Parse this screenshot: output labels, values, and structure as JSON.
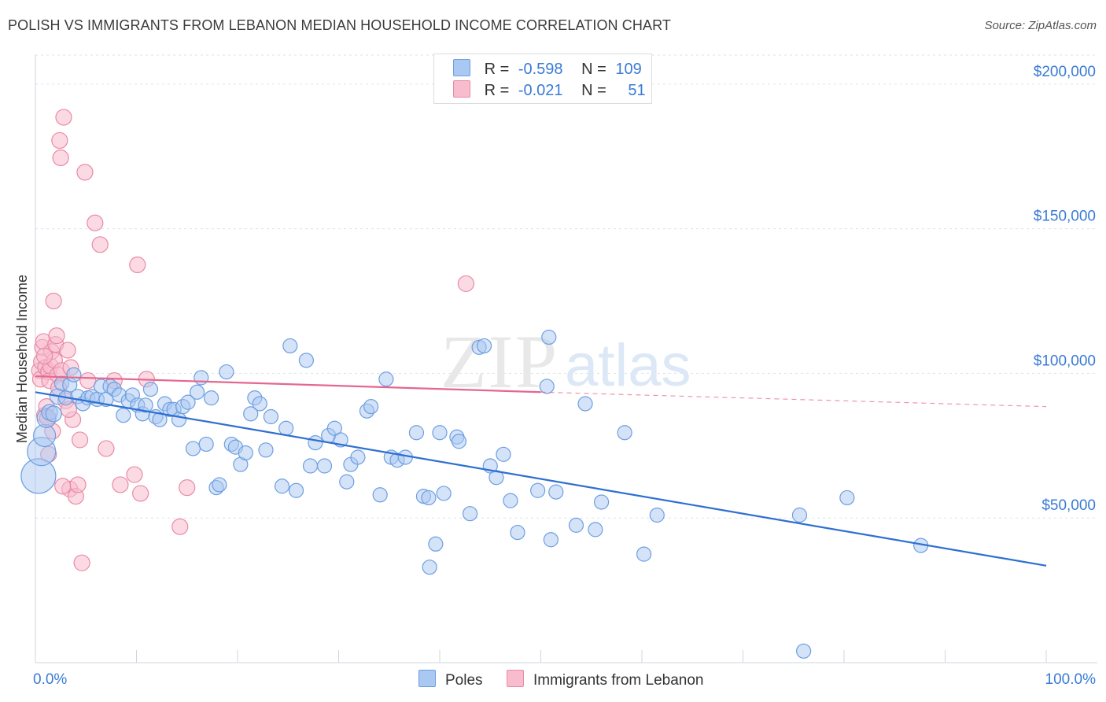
{
  "header": {
    "title": "POLISH VS IMMIGRANTS FROM LEBANON MEDIAN HOUSEHOLD INCOME CORRELATION CHART",
    "source": "Source: ZipAtlas.com"
  },
  "watermark": {
    "zip": "ZIP",
    "atlas": "atlas"
  },
  "legend": {
    "rows": [
      {
        "r_label": "R =",
        "r_value": "-0.598",
        "n_label": "N =",
        "n_value": "109",
        "color": "#a9c8f2"
      },
      {
        "r_label": "R =",
        "r_value": "-0.021",
        "n_label": "N =",
        "n_value": "51",
        "color": "#f7bccd"
      }
    ]
  },
  "bottom_legend": {
    "series1": "Poles",
    "series2": "Immigrants from Lebanon"
  },
  "colors": {
    "blue_fill": "#a9c8f2",
    "blue_stroke": "#6d9fe0",
    "blue_line": "#2e6fd1",
    "pink_fill": "#f7bccd",
    "pink_stroke": "#e98aa7",
    "pink_line": "#e5678f",
    "grid": "#dde3ea",
    "axis_text": "#3a7bd5"
  },
  "chart_data": {
    "type": "scatter",
    "title": "POLISH VS IMMIGRANTS FROM LEBANON MEDIAN HOUSEHOLD INCOME CORRELATION CHART",
    "xlabel": "",
    "ylabel": "Median Household Income",
    "xlim": [
      0,
      100
    ],
    "ylim": [
      0,
      210000
    ],
    "x_tick_labels": [
      "0.0%",
      "100.0%"
    ],
    "y_ticks": [
      50000,
      100000,
      150000,
      200000
    ],
    "y_tick_labels": [
      "$50,000",
      "$100,000",
      "$150,000",
      "$200,000"
    ],
    "grid": true,
    "legend_position": "top-center",
    "series": [
      {
        "name": "Poles",
        "color": "#a9c8f2",
        "trend": {
          "x": [
            0,
            100
          ],
          "y": [
            93500,
            33500
          ],
          "style": "solid"
        },
        "points": [
          [
            0.3,
            64500,
            22
          ],
          [
            0.6,
            73000,
            18
          ],
          [
            0.9,
            78500,
            14
          ],
          [
            1.1,
            84500,
            12
          ],
          [
            1.4,
            86500,
            10
          ],
          [
            1.8,
            86000,
            10
          ],
          [
            2.2,
            92000,
            10
          ],
          [
            2.6,
            96500,
            9
          ],
          [
            3.0,
            91500,
            9
          ],
          [
            3.4,
            96000,
            9
          ],
          [
            3.8,
            99500,
            9
          ],
          [
            4.2,
            92000,
            9
          ],
          [
            4.7,
            89500,
            9
          ],
          [
            5.2,
            91500,
            9
          ],
          [
            5.6,
            92000,
            9
          ],
          [
            6.1,
            91000,
            9
          ],
          [
            6.5,
            95500,
            9
          ],
          [
            7.0,
            91000,
            9
          ],
          [
            7.4,
            95500,
            9
          ],
          [
            7.8,
            94500,
            9
          ],
          [
            8.3,
            92500,
            9
          ],
          [
            8.7,
            85500,
            9
          ],
          [
            9.2,
            90500,
            9
          ],
          [
            9.6,
            92500,
            9
          ],
          [
            10.1,
            89000,
            9
          ],
          [
            10.6,
            86000,
            9
          ],
          [
            10.9,
            89000,
            9
          ],
          [
            11.4,
            94500,
            9
          ],
          [
            11.9,
            85000,
            9
          ],
          [
            12.3,
            84000,
            9
          ],
          [
            12.8,
            89500,
            9
          ],
          [
            13.3,
            87500,
            9
          ],
          [
            13.7,
            87500,
            9
          ],
          [
            14.2,
            84000,
            9
          ],
          [
            14.6,
            88500,
            9
          ],
          [
            15.1,
            90000,
            9
          ],
          [
            15.6,
            74000,
            9
          ],
          [
            16.0,
            93500,
            9
          ],
          [
            16.4,
            98500,
            9
          ],
          [
            16.9,
            75500,
            9
          ],
          [
            17.4,
            91500,
            9
          ],
          [
            17.9,
            60500,
            9
          ],
          [
            18.2,
            61500,
            9
          ],
          [
            18.9,
            100500,
            9
          ],
          [
            19.4,
            75500,
            9
          ],
          [
            19.8,
            74500,
            9
          ],
          [
            20.3,
            68500,
            9
          ],
          [
            20.8,
            72500,
            9
          ],
          [
            21.3,
            86000,
            9
          ],
          [
            21.7,
            91500,
            9
          ],
          [
            22.2,
            89500,
            9
          ],
          [
            22.8,
            73500,
            9
          ],
          [
            23.3,
            85000,
            9
          ],
          [
            24.4,
            61000,
            9
          ],
          [
            24.8,
            81000,
            9
          ],
          [
            25.2,
            109500,
            9
          ],
          [
            25.8,
            59500,
            9
          ],
          [
            26.8,
            104500,
            9
          ],
          [
            27.2,
            68000,
            9
          ],
          [
            27.7,
            76000,
            9
          ],
          [
            28.6,
            68000,
            9
          ],
          [
            29.0,
            78500,
            9
          ],
          [
            29.6,
            81000,
            9
          ],
          [
            30.2,
            77000,
            9
          ],
          [
            30.8,
            62500,
            9
          ],
          [
            31.2,
            68500,
            9
          ],
          [
            31.9,
            71000,
            9
          ],
          [
            32.8,
            87000,
            9
          ],
          [
            33.2,
            88500,
            9
          ],
          [
            34.1,
            58000,
            9
          ],
          [
            34.7,
            98000,
            9
          ],
          [
            35.2,
            71000,
            9
          ],
          [
            35.8,
            70000,
            9
          ],
          [
            36.6,
            71000,
            9
          ],
          [
            37.7,
            79500,
            9
          ],
          [
            38.4,
            57500,
            9
          ],
          [
            38.9,
            57000,
            9
          ],
          [
            40.0,
            79500,
            9
          ],
          [
            40.4,
            58500,
            9
          ],
          [
            41.7,
            78000,
            9
          ],
          [
            41.9,
            76500,
            9
          ],
          [
            43.0,
            51500,
            9
          ],
          [
            43.9,
            109000,
            9
          ],
          [
            44.4,
            109500,
            9
          ],
          [
            45.0,
            68000,
            9
          ],
          [
            45.6,
            64000,
            9
          ],
          [
            46.3,
            72000,
            9
          ],
          [
            47.0,
            56000,
            9
          ],
          [
            47.7,
            45000,
            9
          ],
          [
            49.7,
            59500,
            9
          ],
          [
            50.6,
            95500,
            9
          ],
          [
            50.8,
            112500,
            9
          ],
          [
            51.0,
            42500,
            9
          ],
          [
            51.5,
            59000,
            9
          ],
          [
            53.5,
            47500,
            9
          ],
          [
            54.4,
            89500,
            9
          ],
          [
            55.4,
            46000,
            9
          ],
          [
            56.0,
            55500,
            9
          ],
          [
            58.3,
            79500,
            9
          ],
          [
            60.2,
            37500,
            9
          ],
          [
            61.5,
            51000,
            9
          ],
          [
            75.6,
            51000,
            9
          ],
          [
            76.0,
            4000,
            9
          ],
          [
            80.3,
            57000,
            9
          ],
          [
            87.6,
            40500,
            9
          ],
          [
            39.0,
            33000,
            9
          ],
          [
            39.6,
            41000,
            9
          ]
        ]
      },
      {
        "name": "Immigrants from Lebanon",
        "color": "#f7bccd",
        "trend": {
          "x": [
            0,
            50
          ],
          "y": [
            99000,
            93500
          ],
          "style": "solid",
          "dashed_to": [
            100,
            88500
          ]
        },
        "points": [
          [
            0.4,
            101000,
            10
          ],
          [
            0.5,
            98000,
            10
          ],
          [
            0.6,
            104000,
            10
          ],
          [
            0.7,
            109000,
            10
          ],
          [
            0.8,
            111000,
            10
          ],
          [
            0.9,
            85500,
            10
          ],
          [
            1.0,
            102000,
            10
          ],
          [
            1.1,
            88500,
            10
          ],
          [
            1.2,
            84500,
            10
          ],
          [
            1.3,
            100500,
            10
          ],
          [
            1.4,
            97500,
            10
          ],
          [
            1.5,
            102500,
            10
          ],
          [
            1.6,
            107500,
            10
          ],
          [
            1.7,
            80000,
            10
          ],
          [
            1.8,
            125000,
            10
          ],
          [
            1.9,
            104500,
            10
          ],
          [
            2.0,
            110000,
            10
          ],
          [
            2.1,
            113000,
            10
          ],
          [
            2.2,
            99500,
            10
          ],
          [
            2.3,
            95000,
            10
          ],
          [
            2.4,
            180500,
            10
          ],
          [
            2.5,
            174500,
            10
          ],
          [
            2.6,
            101000,
            10
          ],
          [
            2.8,
            188500,
            10
          ],
          [
            3.0,
            90500,
            10
          ],
          [
            3.2,
            108000,
            10
          ],
          [
            3.4,
            60000,
            10
          ],
          [
            3.5,
            102000,
            10
          ],
          [
            3.7,
            84000,
            10
          ],
          [
            4.0,
            57500,
            10
          ],
          [
            4.2,
            61500,
            10
          ],
          [
            4.4,
            77000,
            10
          ],
          [
            4.6,
            34500,
            10
          ],
          [
            4.9,
            169500,
            10
          ],
          [
            5.2,
            97500,
            10
          ],
          [
            5.9,
            152000,
            10
          ],
          [
            6.4,
            144500,
            10
          ],
          [
            7.0,
            74000,
            10
          ],
          [
            7.8,
            97500,
            10
          ],
          [
            8.4,
            61500,
            10
          ],
          [
            9.8,
            65000,
            10
          ],
          [
            10.1,
            137500,
            10
          ],
          [
            10.4,
            58500,
            10
          ],
          [
            11.0,
            98000,
            10
          ],
          [
            14.3,
            47000,
            10
          ],
          [
            15.0,
            60500,
            10
          ],
          [
            42.6,
            131000,
            10
          ],
          [
            1.3,
            72000,
            10
          ],
          [
            2.7,
            61000,
            10
          ],
          [
            3.3,
            87500,
            10
          ],
          [
            0.9,
            106000,
            10
          ]
        ]
      }
    ]
  }
}
